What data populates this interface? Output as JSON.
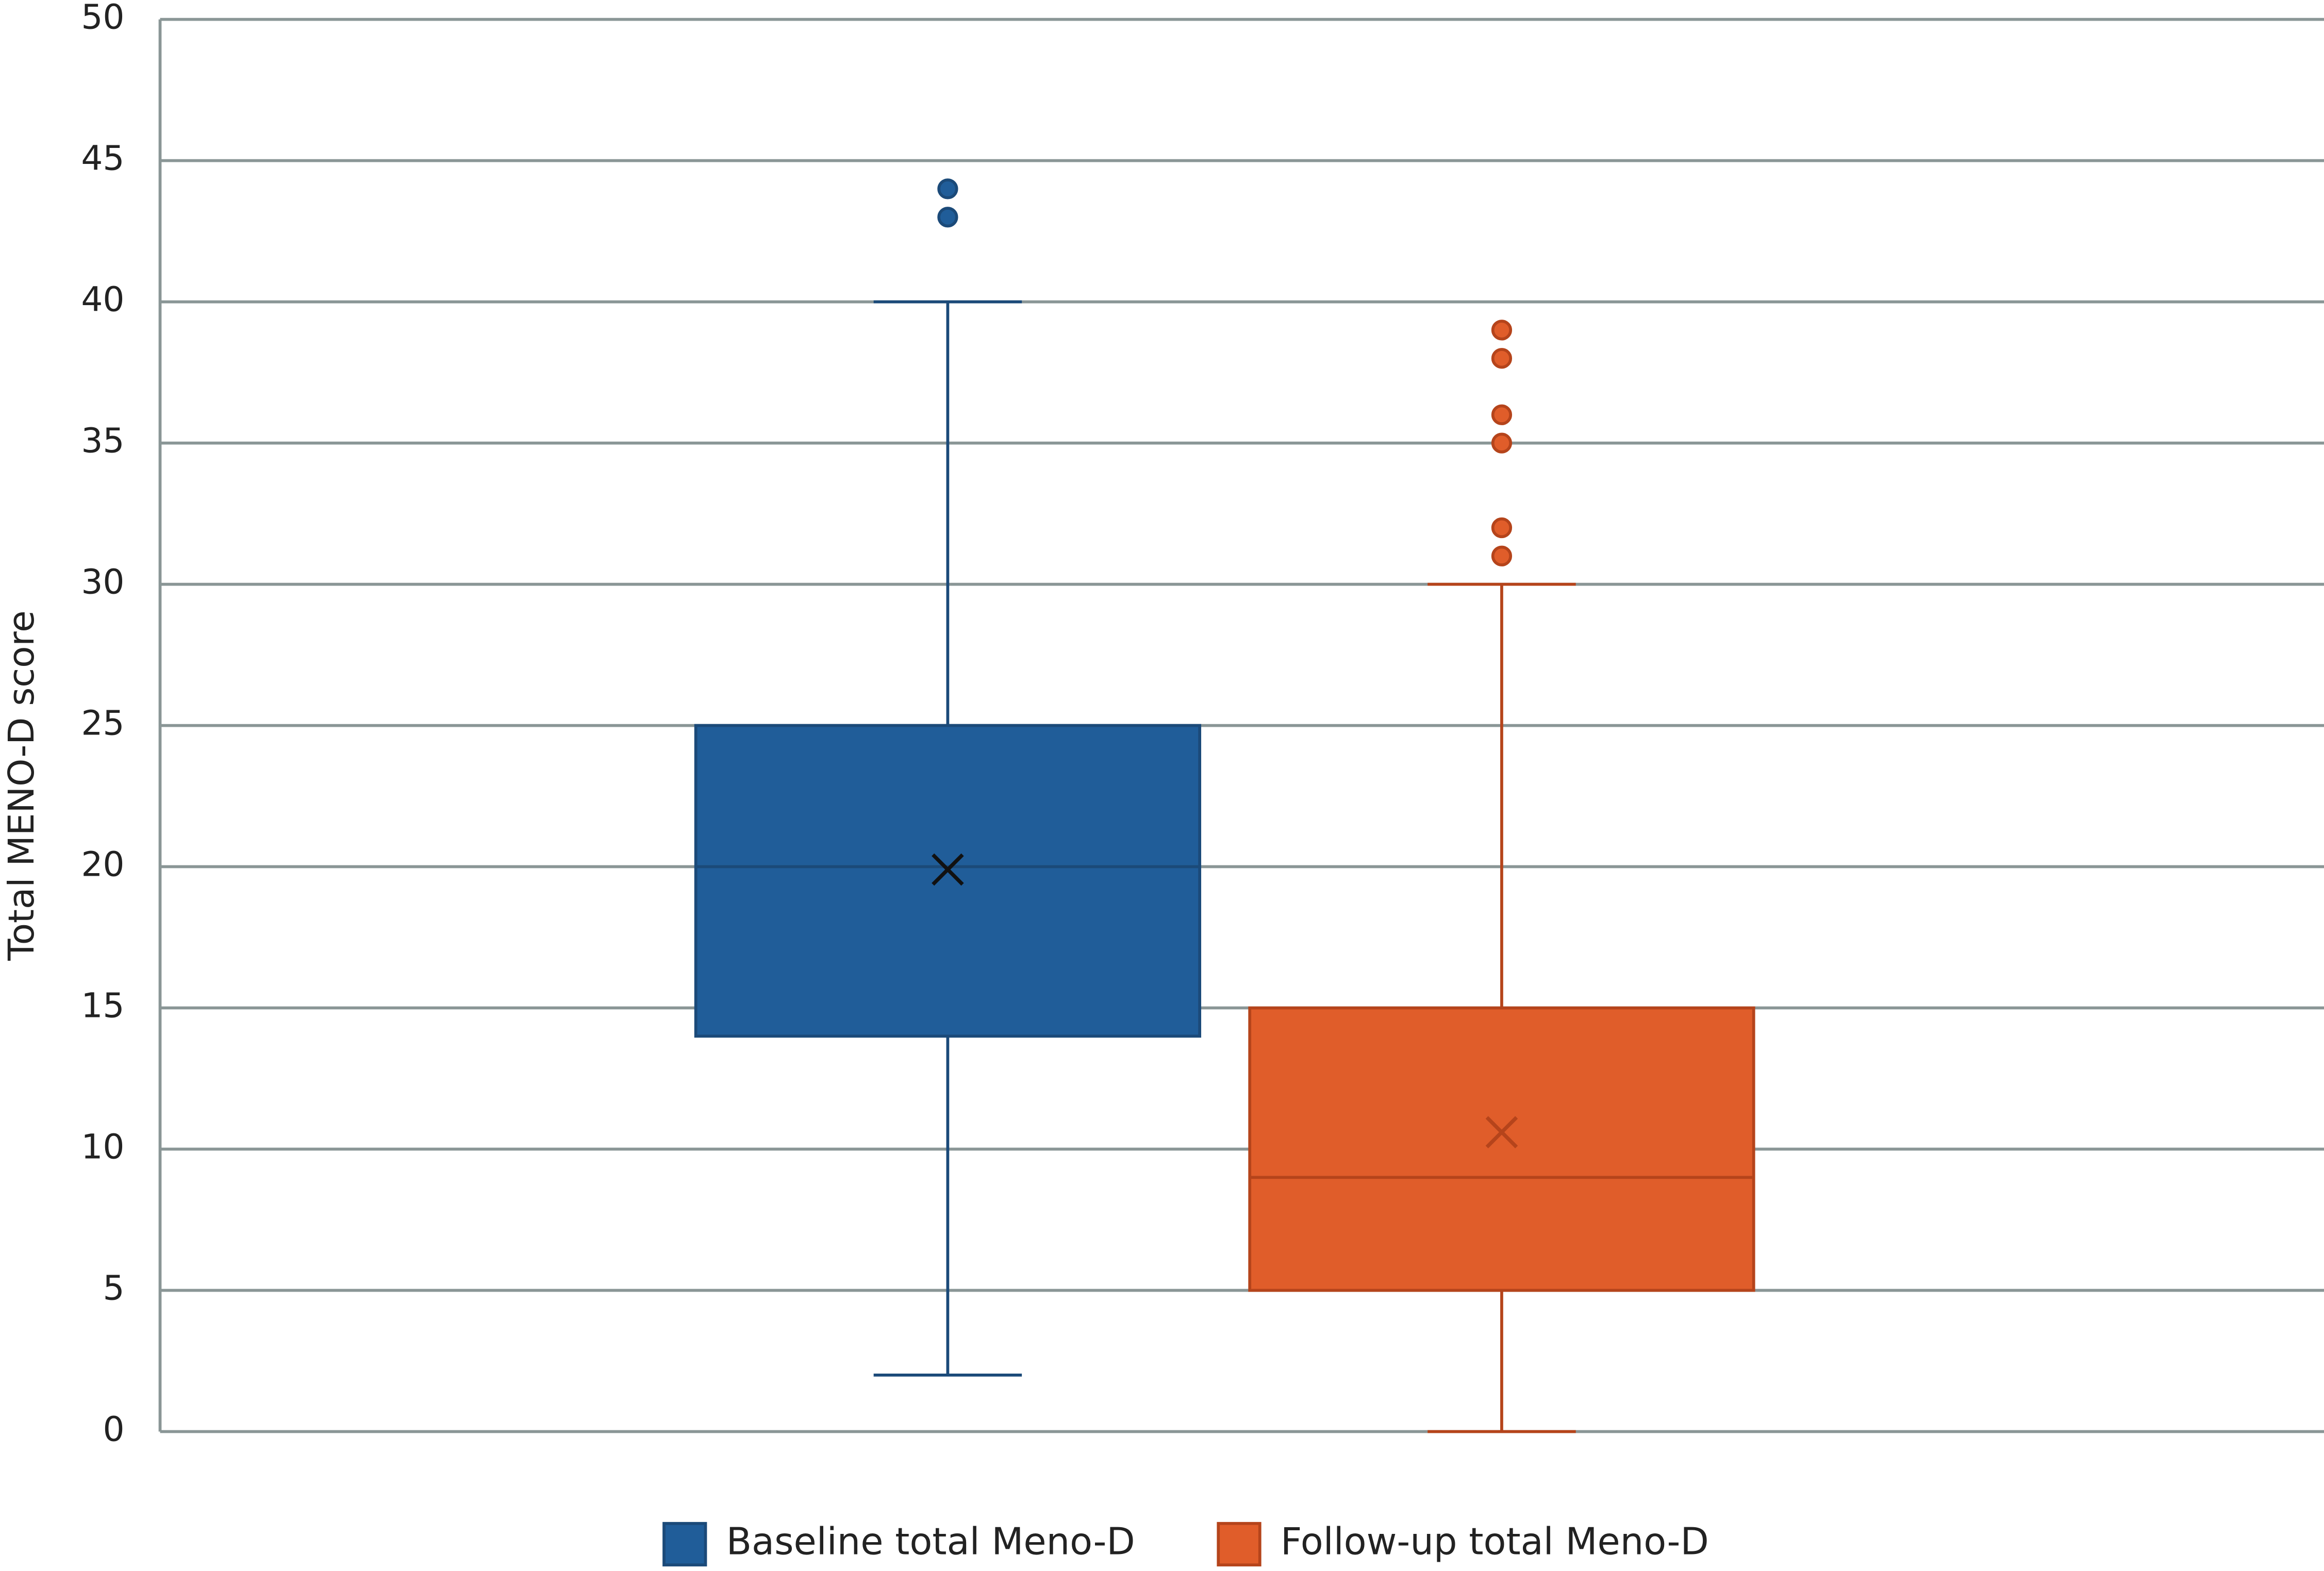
{
  "chart_data": {
    "type": "box",
    "y_label": "Total MENO-D score",
    "ylim": [
      0,
      50
    ],
    "yticks": [
      0,
      5,
      10,
      15,
      20,
      25,
      30,
      35,
      40,
      45,
      50
    ],
    "grid": true,
    "legend": "bottom",
    "series": [
      {
        "name": "Baseline total Meno-D",
        "color": "#205d99",
        "edge": "#1b4a79",
        "min": 2,
        "q1": 14,
        "median": 20,
        "q3": 25,
        "max": 40,
        "mean": 19.9,
        "outliers": [
          43,
          44
        ]
      },
      {
        "name": "Follow-up total Meno-D",
        "color": "#e05d2a",
        "edge": "#b5441b",
        "min": 0,
        "q1": 5,
        "median": 9,
        "q3": 15,
        "max": 30,
        "mean": 10.6,
        "outliers": [
          31,
          32,
          35,
          36,
          38,
          39
        ]
      }
    ]
  }
}
